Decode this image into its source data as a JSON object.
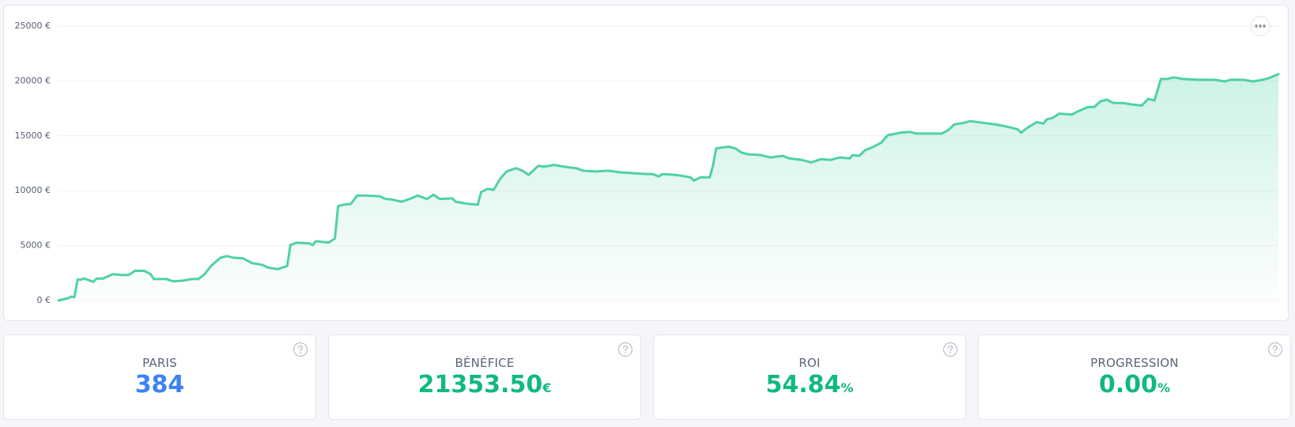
{
  "chart_data": {
    "type": "line",
    "x": [
      0,
      1,
      3,
      4,
      5,
      6,
      7,
      8,
      10,
      11,
      12,
      14,
      16,
      17,
      20,
      22,
      23,
      24,
      27,
      29,
      30,
      34,
      36,
      39,
      42,
      44,
      46,
      48,
      49,
      51,
      53,
      55,
      58,
      61,
      64,
      66,
      69,
      72,
      73,
      75,
      79,
      80,
      81,
      85,
      87,
      88,
      90,
      92,
      94,
      96,
      101,
      103,
      105,
      108,
      111,
      113,
      116,
      118,
      120,
      124,
      125,
      129,
      132,
      133,
      135,
      137,
      139,
      141,
      144,
      146,
      148,
      151,
      153,
      156,
      159,
      163,
      165,
      169,
      173,
      177,
      181,
      185,
      187,
      189,
      190,
      194,
      196,
      199,
      200,
      202,
      205,
      206,
      207,
      211,
      213,
      215,
      217,
      221,
      224,
      228,
      230,
      234,
      237,
      240,
      243,
      246,
      249,
      250,
      252,
      254,
      256,
      259,
      261,
      265,
      268,
      270,
      276,
      278,
      280,
      282,
      285,
      287,
      291,
      295,
      299,
      302,
      303,
      305,
      308,
      310,
      311,
      313,
      315,
      319,
      321,
      324,
      326,
      328,
      330,
      332,
      335,
      338,
      341,
      343,
      345,
      347,
      349,
      351,
      354,
      359,
      364,
      367,
      369,
      373,
      376,
      379,
      381,
      384
    ],
    "values": [
      0,
      75,
      200,
      350,
      300,
      1900,
      1900,
      2000,
      1800,
      1700,
      2000,
      2000,
      2250,
      2400,
      2330,
      2330,
      2480,
      2700,
      2700,
      2400,
      1950,
      1950,
      1750,
      1800,
      1950,
      1950,
      2400,
      3150,
      3400,
      3900,
      4050,
      3900,
      3850,
      3400,
      3250,
      3000,
      2850,
      3150,
      5050,
      5270,
      5200,
      5050,
      5400,
      5270,
      5650,
      8600,
      8730,
      8800,
      9560,
      9560,
      9500,
      9250,
      9200,
      9000,
      9300,
      9560,
      9250,
      9640,
      9250,
      9300,
      9000,
      8800,
      8730,
      9860,
      10170,
      10090,
      11070,
      11750,
      12050,
      11820,
      11450,
      12270,
      12200,
      12350,
      12200,
      12050,
      11820,
      11750,
      11820,
      11670,
      11600,
      11520,
      11520,
      11300,
      11520,
      11450,
      11370,
      11220,
      10920,
      11220,
      11220,
      12270,
      13860,
      14010,
      13860,
      13480,
      13330,
      13250,
      13030,
      13180,
      12950,
      12800,
      12580,
      12880,
      12800,
      13030,
      12950,
      13250,
      13180,
      13710,
      13930,
      14380,
      15060,
      15290,
      15360,
      15210,
      15210,
      15210,
      15510,
      16040,
      16190,
      16340,
      16190,
      16040,
      15810,
      15590,
      15290,
      15740,
      16260,
      16110,
      16490,
      16640,
      17020,
      16940,
      17250,
      17620,
      17620,
      18150,
      18300,
      18000,
      18000,
      17850,
      17770,
      18370,
      18220,
      20180,
      20180,
      20330,
      20180,
      20110,
      20110,
      19960,
      20110,
      20110,
      19960,
      20110,
      20260,
      20630
    ],
    "color": "#4fd1a5",
    "xlim": [
      0,
      384
    ],
    "ylim": [
      0,
      25000
    ],
    "yticks": [
      {
        "value": 0,
        "label": "0 €"
      },
      {
        "value": 5000,
        "label": "5000 €"
      },
      {
        "value": 10000,
        "label": "10000 €"
      },
      {
        "value": 15000,
        "label": "15000 €"
      },
      {
        "value": 20000,
        "label": "20000 €"
      },
      {
        "value": 25000,
        "label": "25000 €"
      }
    ],
    "grid": true
  },
  "stats": [
    {
      "label": "PARIS",
      "value": "384",
      "color": "#3b82f6"
    },
    {
      "label": "BÉNÉFICE",
      "value": "21353.50",
      "unit": "€",
      "color": "#10b981"
    },
    {
      "label": "ROI",
      "value": "54.84",
      "unit": "%",
      "color": "#10b981"
    },
    {
      "label": "PROGRESSION",
      "value": "0.00",
      "unit": "%",
      "color": "#10b981"
    }
  ]
}
